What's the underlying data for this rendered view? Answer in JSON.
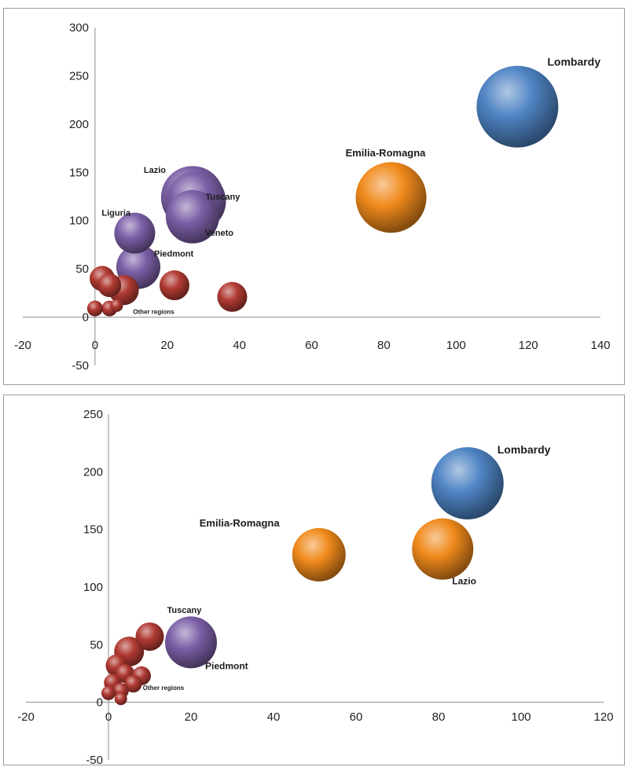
{
  "chart_data": [
    {
      "type": "bubble",
      "xlim": [
        -20,
        140
      ],
      "ylim": [
        -50,
        300
      ],
      "x_ticks": [
        -20,
        0,
        20,
        40,
        60,
        80,
        100,
        120,
        140
      ],
      "y_ticks": [
        -50,
        0,
        50,
        100,
        150,
        200,
        250,
        300
      ],
      "grid": false,
      "colors": {
        "blue": "#4f84c4",
        "orange": "#f08a1c",
        "purple": "#7b5fa6",
        "red": "#b03a32"
      },
      "points": [
        {
          "label": "Lombardy",
          "x": 117,
          "y": 218,
          "size": 52,
          "color": "blue"
        },
        {
          "label": "Emilia-Romagna",
          "x": 82,
          "y": 124,
          "size": 45,
          "color": "orange"
        },
        {
          "label": "Lazio",
          "x": 27,
          "y": 124,
          "size": 40,
          "color": "purple"
        },
        {
          "label": "Tuscany",
          "x": 28,
          "y": 120,
          "size": 38,
          "color": "purple"
        },
        {
          "label": "Veneto",
          "x": 27,
          "y": 104,
          "size": 34,
          "color": "purple"
        },
        {
          "label": "Liguria",
          "x": 11,
          "y": 87,
          "size": 26,
          "color": "purple"
        },
        {
          "label": "Piedmont",
          "x": 12,
          "y": 52,
          "size": 28,
          "color": "purple"
        },
        {
          "label": "Other regions",
          "x": 4,
          "y": 9,
          "size": 10,
          "color": "red"
        },
        {
          "label": "",
          "x": 2,
          "y": 40,
          "size": 16,
          "color": "red"
        },
        {
          "label": "",
          "x": 4,
          "y": 33,
          "size": 15,
          "color": "red"
        },
        {
          "label": "",
          "x": 8,
          "y": 28,
          "size": 19,
          "color": "red"
        },
        {
          "label": "",
          "x": 22,
          "y": 33,
          "size": 19,
          "color": "red"
        },
        {
          "label": "",
          "x": 38,
          "y": 21,
          "size": 19,
          "color": "red"
        },
        {
          "label": "",
          "x": 0,
          "y": 9,
          "size": 10,
          "color": "red"
        },
        {
          "label": "",
          "x": 6,
          "y": 12,
          "size": 8,
          "color": "red"
        }
      ]
    },
    {
      "type": "bubble",
      "xlim": [
        -20,
        120
      ],
      "ylim": [
        -50,
        250
      ],
      "x_ticks": [
        -20,
        0,
        20,
        40,
        60,
        80,
        100,
        120
      ],
      "y_ticks": [
        -50,
        0,
        50,
        100,
        150,
        200,
        250
      ],
      "grid": false,
      "colors": {
        "blue": "#4f84c4",
        "orange": "#f08a1c",
        "purple": "#7b5fa6",
        "red": "#b03a32"
      },
      "points": [
        {
          "label": "Lombardy",
          "x": 87,
          "y": 190,
          "size": 46,
          "color": "blue"
        },
        {
          "label": "Emilia-Romagna",
          "x": 51,
          "y": 128,
          "size": 34,
          "color": "orange"
        },
        {
          "label": "Lazio",
          "x": 81,
          "y": 133,
          "size": 39,
          "color": "orange"
        },
        {
          "label": "Tuscany",
          "x": 10,
          "y": 57,
          "size": 18,
          "color": "red"
        },
        {
          "label": "Piedmont",
          "x": 20,
          "y": 52,
          "size": 33,
          "color": "purple"
        },
        {
          "label": "Other regions",
          "x": 3,
          "y": 10,
          "size": 10,
          "color": "red"
        },
        {
          "label": "",
          "x": 5,
          "y": 44,
          "size": 19,
          "color": "red"
        },
        {
          "label": "",
          "x": 2,
          "y": 32,
          "size": 14,
          "color": "red"
        },
        {
          "label": "",
          "x": 4,
          "y": 25,
          "size": 12,
          "color": "red"
        },
        {
          "label": "",
          "x": 8,
          "y": 23,
          "size": 12,
          "color": "red"
        },
        {
          "label": "",
          "x": 1,
          "y": 17,
          "size": 11,
          "color": "red"
        },
        {
          "label": "",
          "x": 6,
          "y": 16,
          "size": 11,
          "color": "red"
        },
        {
          "label": "",
          "x": 0,
          "y": 8,
          "size": 9,
          "color": "red"
        },
        {
          "label": "",
          "x": 3,
          "y": 3,
          "size": 8,
          "color": "red"
        }
      ]
    }
  ]
}
